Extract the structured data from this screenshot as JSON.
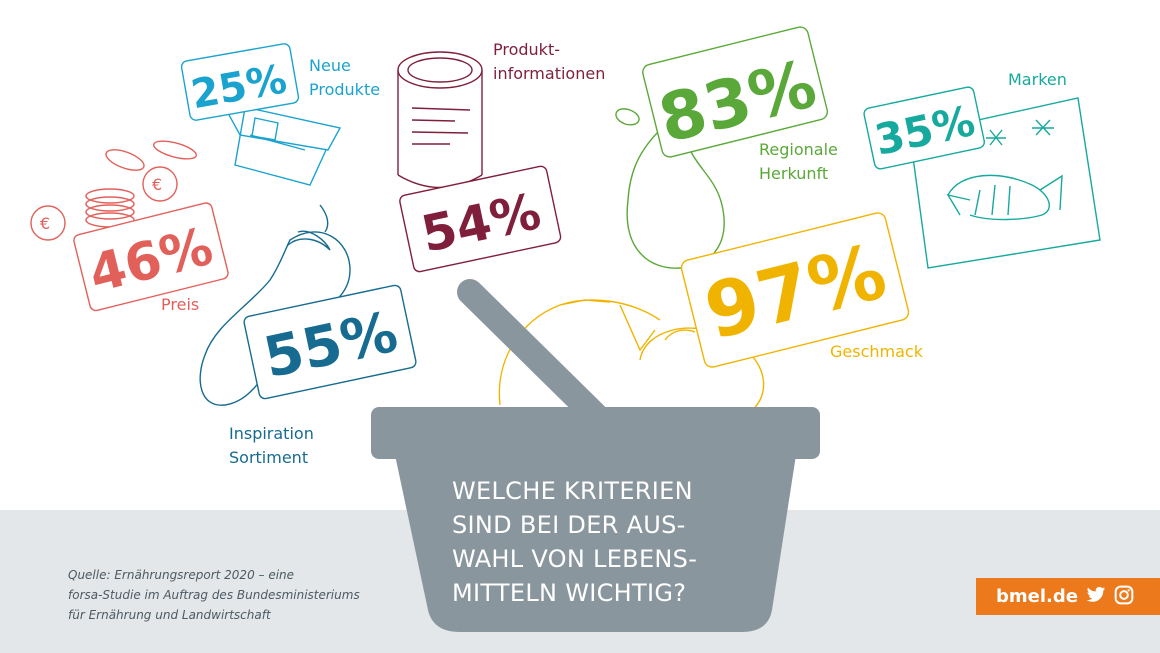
{
  "colors": {
    "preis": "#e2605a",
    "neue_produkte": "#1ba3cf",
    "produktinformationen": "#7f1f3b",
    "regionale_herkunft": "#5aa839",
    "marken": "#16a99d",
    "inspiration": "#176b90",
    "geschmack": "#f0b400",
    "basket": "#8a969d",
    "footer": "#e3e7e9",
    "brand": "#ec7a1c"
  },
  "question": "WELCHE KRITERIEN\nSIND BEI DER AUS-\nWAHL VON LEBENS-\nMITTELN WICHTIG?",
  "source": "Quelle: Ernährungsreport 2020 – eine\nforsa-Studie im Auftrag des Bundesministeriums\nfür Ernährung und Landwirtschaft",
  "brand": {
    "text": "bmel.de",
    "icons": [
      "twitter-icon",
      "instagram-icon"
    ]
  },
  "chart_data": {
    "type": "table",
    "unit": "%",
    "categories": [
      {
        "label": "Neue\nProdukte",
        "value": 25,
        "display": "25%"
      },
      {
        "label": "Produkt-\ninformationen",
        "value": 54,
        "display": "54%"
      },
      {
        "label": "Regionale\nHerkunft",
        "value": 83,
        "display": "83%"
      },
      {
        "label": "Marken",
        "value": 35,
        "display": "35%"
      },
      {
        "label": "Preis",
        "value": 46,
        "display": "46%"
      },
      {
        "label": "Inspiration\nSortiment",
        "value": 55,
        "display": "55%"
      },
      {
        "label": "Geschmack",
        "value": 97,
        "display": "97%"
      }
    ]
  }
}
